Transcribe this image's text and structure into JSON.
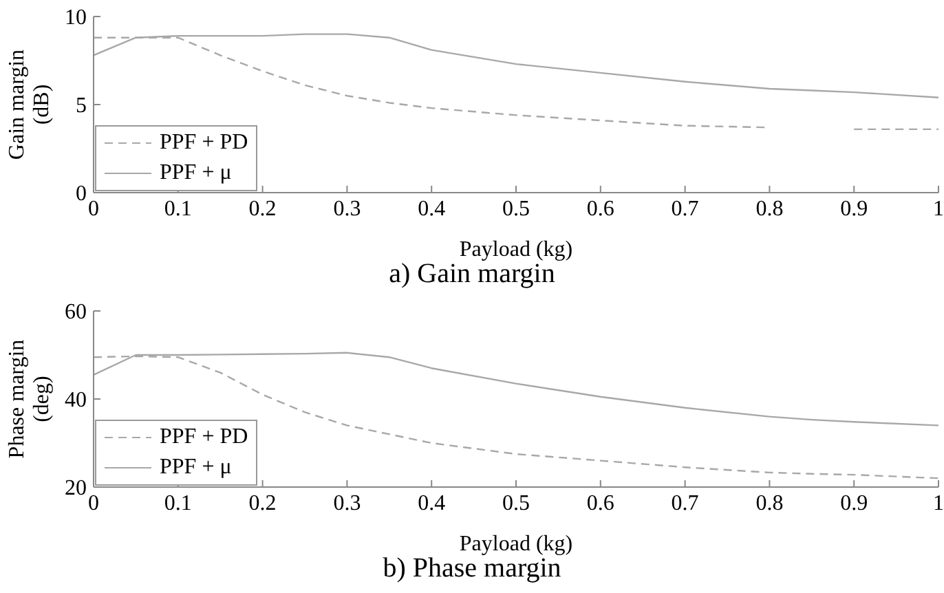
{
  "chart_data": [
    {
      "type": "line",
      "title": "a) Gain margin",
      "xlabel": "Payload (kg)",
      "ylabel": "Gain margin (dB)",
      "x": [
        0,
        0.05,
        0.1,
        0.15,
        0.2,
        0.25,
        0.3,
        0.35,
        0.4,
        0.5,
        0.6,
        0.7,
        0.8,
        0.85,
        0.9,
        1
      ],
      "series": [
        {
          "name": "PPF + PD",
          "color": "#a8a8a8",
          "line_style": "dashed",
          "values": [
            8.8,
            8.8,
            8.8,
            7.8,
            6.9,
            6.1,
            5.5,
            5.1,
            4.8,
            4.4,
            4.1,
            3.8,
            3.7,
            null,
            3.6,
            3.6
          ]
        },
        {
          "name": "PPF + μ",
          "color": "#a8a8a8",
          "line_style": "solid",
          "values": [
            7.8,
            8.8,
            8.9,
            8.9,
            8.9,
            9.0,
            9.0,
            8.8,
            8.1,
            7.3,
            6.8,
            6.3,
            5.9,
            5.8,
            5.7,
            5.4
          ]
        }
      ],
      "xlim": [
        0,
        1
      ],
      "xticks": [
        0,
        0.1,
        0.2,
        0.3,
        0.4,
        0.5,
        0.6,
        0.7,
        0.8,
        0.9,
        1
      ],
      "ylim": [
        0,
        10
      ],
      "yticks": [
        0,
        5,
        10
      ],
      "legend": "bottom left",
      "marker": "none"
    },
    {
      "type": "line",
      "title": "b) Phase margin",
      "xlabel": "Payload (kg)",
      "ylabel": "Phase margin (deg)",
      "x": [
        0,
        0.05,
        0.1,
        0.15,
        0.2,
        0.25,
        0.3,
        0.35,
        0.4,
        0.5,
        0.6,
        0.7,
        0.8,
        0.85,
        0.9,
        1
      ],
      "series": [
        {
          "name": "PPF + PD",
          "color": "#a8a8a8",
          "line_style": "dashed",
          "values": [
            49.5,
            49.7,
            49.5,
            46,
            41,
            37,
            34,
            32,
            30,
            27.5,
            26,
            24.5,
            23.3,
            23,
            22.8,
            22
          ]
        },
        {
          "name": "PPF + μ",
          "color": "#a8a8a8",
          "line_style": "solid",
          "values": [
            45.5,
            50,
            50,
            50.1,
            50.2,
            50.3,
            50.5,
            49.5,
            47,
            43.5,
            40.5,
            38,
            36,
            35.3,
            34.8,
            34
          ]
        }
      ],
      "xlim": [
        0,
        1
      ],
      "xticks": [
        0,
        0.1,
        0.2,
        0.3,
        0.4,
        0.5,
        0.6,
        0.7,
        0.8,
        0.9,
        1
      ],
      "ylim": [
        20,
        60
      ],
      "yticks": [
        20,
        40,
        60
      ],
      "legend": "bottom left",
      "marker": "none"
    }
  ]
}
